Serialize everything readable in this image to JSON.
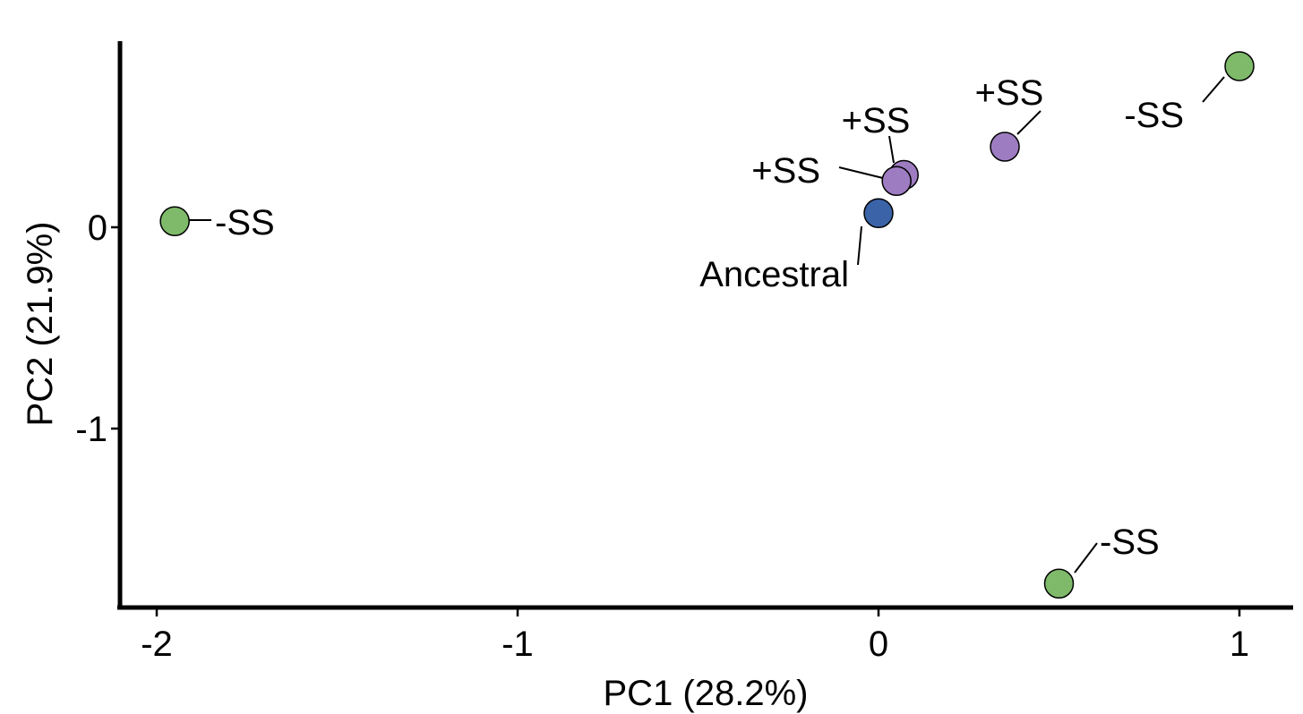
{
  "chart_data": {
    "type": "scatter",
    "title": "",
    "xlabel": "PC1 (28.2%)",
    "ylabel": "PC2 (21.9%)",
    "xlim": [
      -2.1,
      1.15
    ],
    "ylim": [
      -1.88,
      0.9
    ],
    "x_ticks": [
      -2,
      -1,
      0,
      1
    ],
    "x_tick_labels": [
      "-2",
      "-1",
      "0",
      "1"
    ],
    "y_ticks": [
      -1,
      0
    ],
    "y_tick_labels": [
      "-1",
      "0"
    ],
    "grid": false,
    "legend": "none",
    "colors": {
      "-SS": "#7fba6a",
      "+SS": "#9e7cc1",
      "Ancestral": "#3a63a8"
    },
    "points": [
      {
        "x": -1.95,
        "y": 0.03,
        "label": "-SS",
        "group": "-SS"
      },
      {
        "x": 1.0,
        "y": 0.8,
        "label": "-SS",
        "group": "-SS"
      },
      {
        "x": 0.5,
        "y": -1.77,
        "label": "-SS",
        "group": "-SS"
      },
      {
        "x": 0.35,
        "y": 0.4,
        "label": "+SS",
        "group": "+SS"
      },
      {
        "x": 0.07,
        "y": 0.26,
        "label": "+SS",
        "group": "+SS"
      },
      {
        "x": 0.05,
        "y": 0.23,
        "label": "+SS",
        "group": "+SS"
      },
      {
        "x": 0.0,
        "y": 0.07,
        "label": "Ancestral",
        "group": "Ancestral"
      }
    ]
  }
}
